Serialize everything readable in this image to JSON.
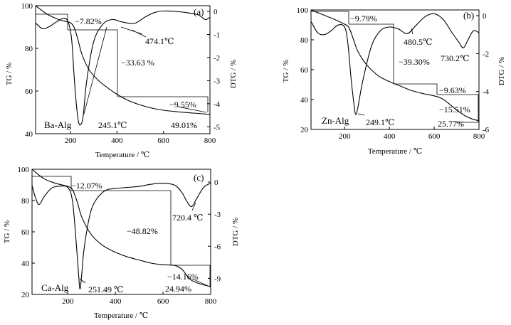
{
  "chart_data": [
    {
      "type": "line",
      "panel": "(a)",
      "sample": "Ba-Alg",
      "xlabel": "Temperature / ℃",
      "ylabel_left": "TG / %",
      "ylabel_right": "DTG / %",
      "xlim": [
        50,
        800
      ],
      "ylim_left": [
        40,
        100
      ],
      "ylim_right": [
        -5.3,
        0.25
      ],
      "xticks": [
        200,
        400,
        600,
        800
      ],
      "yticks_left": [
        40,
        60,
        80,
        100
      ],
      "yticks_right": [
        0,
        -1,
        -2,
        -3,
        -4,
        -5
      ],
      "series": [
        {
          "name": "TG",
          "axis": "left",
          "x": [
            50,
            100,
            150,
            180,
            200,
            215,
            230,
            250,
            280,
            320,
            360,
            400,
            450,
            500,
            550,
            600,
            650,
            700,
            750,
            800
          ],
          "values": [
            100,
            96,
            93.5,
            92.6,
            92,
            90,
            85,
            77,
            70,
            65,
            61.5,
            58.5,
            55.5,
            53.5,
            52,
            51,
            50.4,
            49.9,
            49.5,
            49.0
          ]
        },
        {
          "name": "DTG",
          "axis": "right",
          "x": [
            50,
            80,
            110,
            140,
            170,
            190,
            205,
            215,
            225,
            235,
            245,
            255,
            270,
            300,
            340,
            380,
            420,
            474,
            520,
            560,
            600,
            650,
            700,
            750,
            780,
            800
          ],
          "values": [
            -0.5,
            -0.75,
            -0.65,
            -0.45,
            -0.3,
            -0.45,
            -1.2,
            -2.7,
            -4.0,
            -4.8,
            -4.9,
            -4.5,
            -3.0,
            -1.3,
            -0.55,
            -0.35,
            -0.45,
            -0.52,
            -0.25,
            -0.05,
            0.02,
            0.0,
            -0.05,
            -0.15,
            -0.35,
            -0.25
          ]
        }
      ],
      "annotations": [
        {
          "text": "−7.82%",
          "x": 200,
          "axis": "left",
          "y": 97
        },
        {
          "text": "474.1℃",
          "x": 474,
          "axis": "right",
          "y": -0.8
        },
        {
          "text": "−33.63 %",
          "x": 400,
          "axis": "left",
          "y": 75
        },
        {
          "text": "−9.55%",
          "x": 650,
          "axis": "left",
          "y": 53
        },
        {
          "text": "245.1℃",
          "x": 245,
          "axis": "right",
          "y": -4.75
        },
        {
          "text": "49.01%",
          "x": 650,
          "axis": "left",
          "y": 44
        }
      ]
    },
    {
      "type": "line",
      "panel": "(b)",
      "sample": "Zn-Alg",
      "xlabel": "Temperature / ℃",
      "ylabel_left": "TG / %",
      "ylabel_right": "DTG / %",
      "xlim": [
        50,
        800
      ],
      "ylim_left": [
        20,
        100
      ],
      "ylim_right": [
        -6.0,
        0.3
      ],
      "xticks": [
        200,
        400,
        600,
        800
      ],
      "yticks_left": [
        20,
        40,
        60,
        80,
        100
      ],
      "yticks_right": [
        0,
        -2,
        -4,
        -6
      ],
      "series": [
        {
          "name": "TG",
          "axis": "left",
          "x": [
            50,
            100,
            150,
            200,
            220,
            240,
            260,
            300,
            350,
            400,
            450,
            500,
            550,
            600,
            630,
            660,
            700,
            740,
            770,
            800
          ],
          "values": [
            100,
            97,
            94,
            90.5,
            88,
            80,
            72,
            63,
            56,
            52,
            49,
            46,
            44,
            42.5,
            41,
            38,
            33,
            29,
            27,
            25.8
          ]
        },
        {
          "name": "DTG",
          "axis": "right",
          "x": [
            50,
            80,
            110,
            140,
            170,
            200,
            215,
            228,
            240,
            249,
            260,
            280,
            320,
            360,
            400,
            440,
            480,
            520,
            560,
            600,
            640,
            680,
            710,
            730,
            750,
            775,
            800
          ],
          "values": [
            -0.3,
            -0.9,
            -1.0,
            -0.8,
            -0.5,
            -0.6,
            -1.5,
            -3.2,
            -4.5,
            -5.2,
            -4.8,
            -3.5,
            -1.6,
            -0.8,
            -0.6,
            -0.7,
            -0.95,
            -0.5,
            -0.05,
            0.1,
            -0.2,
            -0.9,
            -1.4,
            -1.7,
            -1.3,
            -0.8,
            -0.9
          ]
        }
      ],
      "annotations": [
        {
          "text": "−9.79%",
          "x": 230,
          "axis": "left",
          "y": 96
        },
        {
          "text": "480.5℃",
          "x": 480,
          "axis": "right",
          "y": -1.2
        },
        {
          "text": "730.2℃",
          "x": 730,
          "axis": "right",
          "y": -2.2
        },
        {
          "text": "−39.30%",
          "x": 420,
          "axis": "left",
          "y": 67
        },
        {
          "text": "−9.63%",
          "x": 650,
          "axis": "left",
          "y": 45
        },
        {
          "text": "−15.51%",
          "x": 700,
          "axis": "left",
          "y": 33
        },
        {
          "text": "249.1℃",
          "x": 249,
          "axis": "right",
          "y": -5.2
        },
        {
          "text": "25.77%",
          "x": 700,
          "axis": "left",
          "y": 24
        },
        {
          "text": "Zn-Alg",
          "x": 100,
          "axis": "left",
          "y": 29
        }
      ]
    },
    {
      "type": "line",
      "panel": "(c)",
      "sample": "Ca-Alg",
      "xlabel": "Temperature / ℃",
      "ylabel_left": "TG / %",
      "ylabel_right": "DTG / %",
      "xlim": [
        50,
        800
      ],
      "ylim_left": [
        20,
        100
      ],
      "ylim_right": [
        -10.5,
        1.2
      ],
      "xticks": [
        200,
        400,
        600,
        800
      ],
      "yticks_left": [
        20,
        40,
        60,
        80,
        100
      ],
      "yticks_right": [
        0,
        -3,
        -6,
        -9
      ],
      "series": [
        {
          "name": "TG",
          "axis": "left",
          "x": [
            50,
            100,
            150,
            200,
            220,
            240,
            260,
            300,
            350,
            400,
            450,
            500,
            550,
            600,
            650,
            680,
            700,
            720,
            750,
            800
          ],
          "values": [
            100,
            94,
            91,
            89,
            87,
            79,
            69,
            58,
            51,
            47,
            44,
            42,
            40,
            39,
            38.5,
            36,
            32,
            29,
            27,
            25.0
          ]
        },
        {
          "name": "DTG",
          "axis": "right",
          "x": [
            50,
            65,
            80,
            100,
            130,
            160,
            200,
            220,
            235,
            245,
            251,
            258,
            270,
            300,
            350,
            400,
            450,
            500,
            550,
            600,
            650,
            680,
            700,
            720,
            740,
            770,
            800
          ],
          "values": [
            -0.3,
            -1.5,
            -2.1,
            -1.4,
            -0.6,
            -0.4,
            -0.5,
            -1.8,
            -5.5,
            -8.5,
            -10.0,
            -8.8,
            -6.0,
            -2.5,
            -0.9,
            -0.6,
            -0.5,
            -0.4,
            -0.2,
            -0.1,
            -0.3,
            -1.0,
            -1.8,
            -2.3,
            -1.6,
            -0.5,
            -0.1
          ]
        }
      ],
      "annotations": [
        {
          "text": "−12.07%",
          "x": 230,
          "axis": "left",
          "y": 95
        },
        {
          "text": "720.4 ℃",
          "x": 720,
          "axis": "right",
          "y": -3.5
        },
        {
          "text": "−48.82%",
          "x": 450,
          "axis": "left",
          "y": 65
        },
        {
          "text": "−14.16%",
          "x": 700,
          "axis": "left",
          "y": 32
        },
        {
          "text": "251.49 ℃",
          "x": 251,
          "axis": "right",
          "y": -10.3
        },
        {
          "text": "24.94%",
          "x": 700,
          "axis": "left",
          "y": 23
        }
      ]
    }
  ]
}
